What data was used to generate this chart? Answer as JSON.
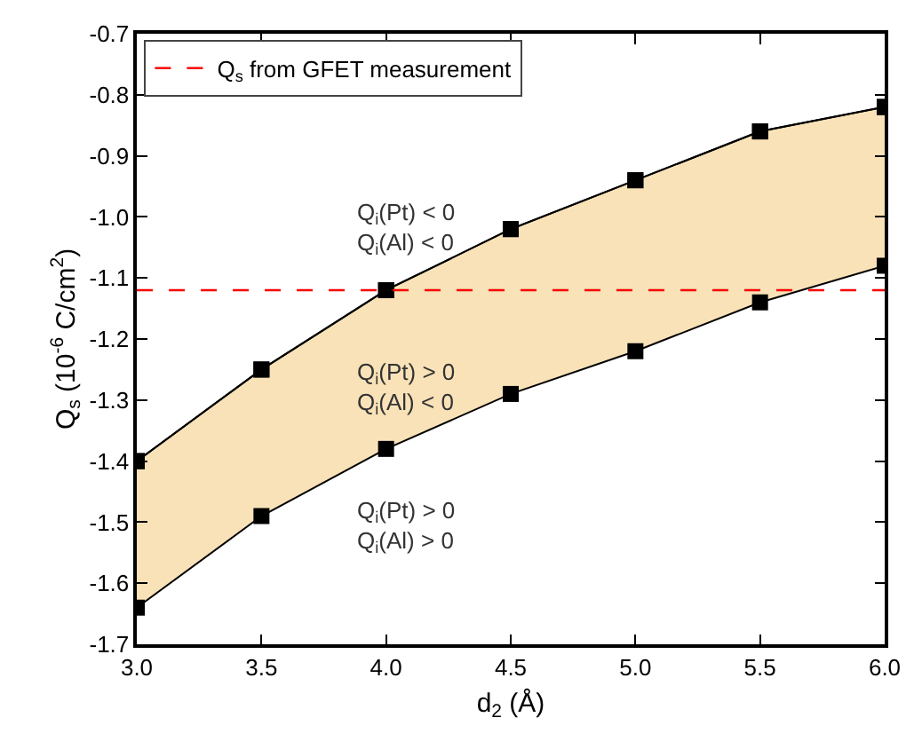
{
  "chart_data": {
    "type": "line",
    "xlabel": "d$_{2}$ (Å)",
    "ylabel": "Q$_{s}$ (10$^{-6}$ C/cm$^{2}$)",
    "x": [
      3.0,
      3.5,
      4.0,
      4.5,
      5.0,
      5.5,
      6.0
    ],
    "series": [
      {
        "color": "#000000",
        "values": [
          -1.4,
          -1.25,
          -1.12,
          -1.02,
          -0.94,
          -0.86,
          -0.82
        ]
      },
      {
        "type": "area",
        "color": "#f9e2b8",
        "values": [
          -1.64,
          -1.49,
          -1.38,
          -1.29,
          -1.22,
          -1.14,
          -1.08
        ]
      }
    ],
    "marker": "square",
    "xlim": [
      3.0,
      6.0
    ],
    "xticks": [
      {
        "value": 3.0,
        "label": "3.0"
      },
      3.5,
      {
        "value": 4.0,
        "label": "4.0"
      },
      4.5,
      {
        "value": 5.0,
        "label": "5.0"
      },
      5.5,
      {
        "value": 6.0,
        "label": "6.0"
      }
    ],
    "ylim": [
      -1.7,
      -0.7
    ],
    "yticks": [
      -1.7,
      -1.6,
      -1.5,
      -1.4,
      -1.3,
      -1.2,
      -1.1,
      {
        "value": -1.0,
        "label": "-1.0"
      },
      -0.9,
      -0.8,
      -0.7
    ],
    "ref_lines": [
      {
        "axis": "y",
        "value": -1.12,
        "label": "Q$_{s}$ from GFET measurement",
        "color": "#ff0000",
        "line_style": "dashed"
      }
    ],
    "annotations": [
      "Q$_{i}$(Pt) < 0\nQ$_{i}$(Al) < 0",
      "Q$_{i}$(Pt) > 0\nQ$_{i}$(Al) < 0",
      "Q$_{i}$(Pt) > 0\nQ$_{i}$(Al) > 0"
    ],
    "legend": "top left",
    "grid": false
  }
}
